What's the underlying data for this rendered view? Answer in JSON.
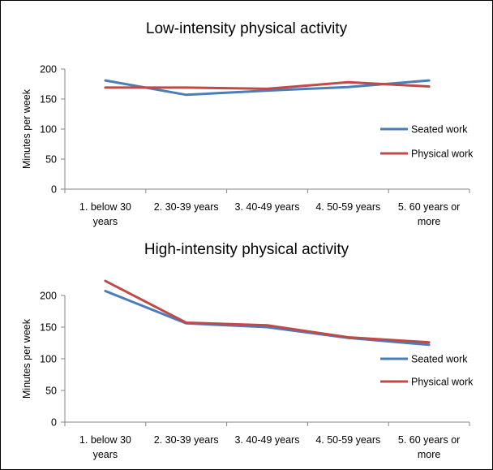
{
  "chart_data": [
    {
      "type": "line",
      "title": "Low-intensity physical activity",
      "xlabel": "",
      "ylabel": "Minutes per week",
      "categories": [
        [
          "1. below 30",
          "years"
        ],
        [
          "2. 30-39 years"
        ],
        [
          "3. 40-49 years"
        ],
        [
          "4. 50-59 years"
        ],
        [
          "5. 60 years or",
          "more"
        ]
      ],
      "ylim": [
        0,
        200
      ],
      "yticks": [
        "0",
        "50",
        "100",
        "150",
        "200"
      ],
      "grid": false,
      "legend_position": "right",
      "series": [
        {
          "name": "Seated work",
          "color": "#4a7ebb",
          "values": [
            181,
            157,
            164,
            170,
            181
          ]
        },
        {
          "name": "Physical work",
          "color": "#be4b48",
          "values": [
            169,
            169,
            167,
            178,
            171
          ]
        }
      ]
    },
    {
      "type": "line",
      "title": "High-intensity physical activity",
      "xlabel": "",
      "ylabel": "Minutes per week",
      "categories": [
        [
          "1. below 30",
          "years"
        ],
        [
          "2. 30-39 years"
        ],
        [
          "3. 40-49 years"
        ],
        [
          "4. 50-59 years"
        ],
        [
          "5. 60 years or",
          "more"
        ]
      ],
      "ylim": [
        0,
        200
      ],
      "yticks": [
        "0",
        "50",
        "100",
        "150",
        "200"
      ],
      "grid": false,
      "legend_position": "right",
      "series": [
        {
          "name": "Seated work",
          "color": "#4a7ebb",
          "values": [
            207,
            156,
            150,
            133,
            122
          ]
        },
        {
          "name": "Physical work",
          "color": "#be4b48",
          "values": [
            223,
            157,
            153,
            134,
            126
          ]
        }
      ]
    }
  ]
}
